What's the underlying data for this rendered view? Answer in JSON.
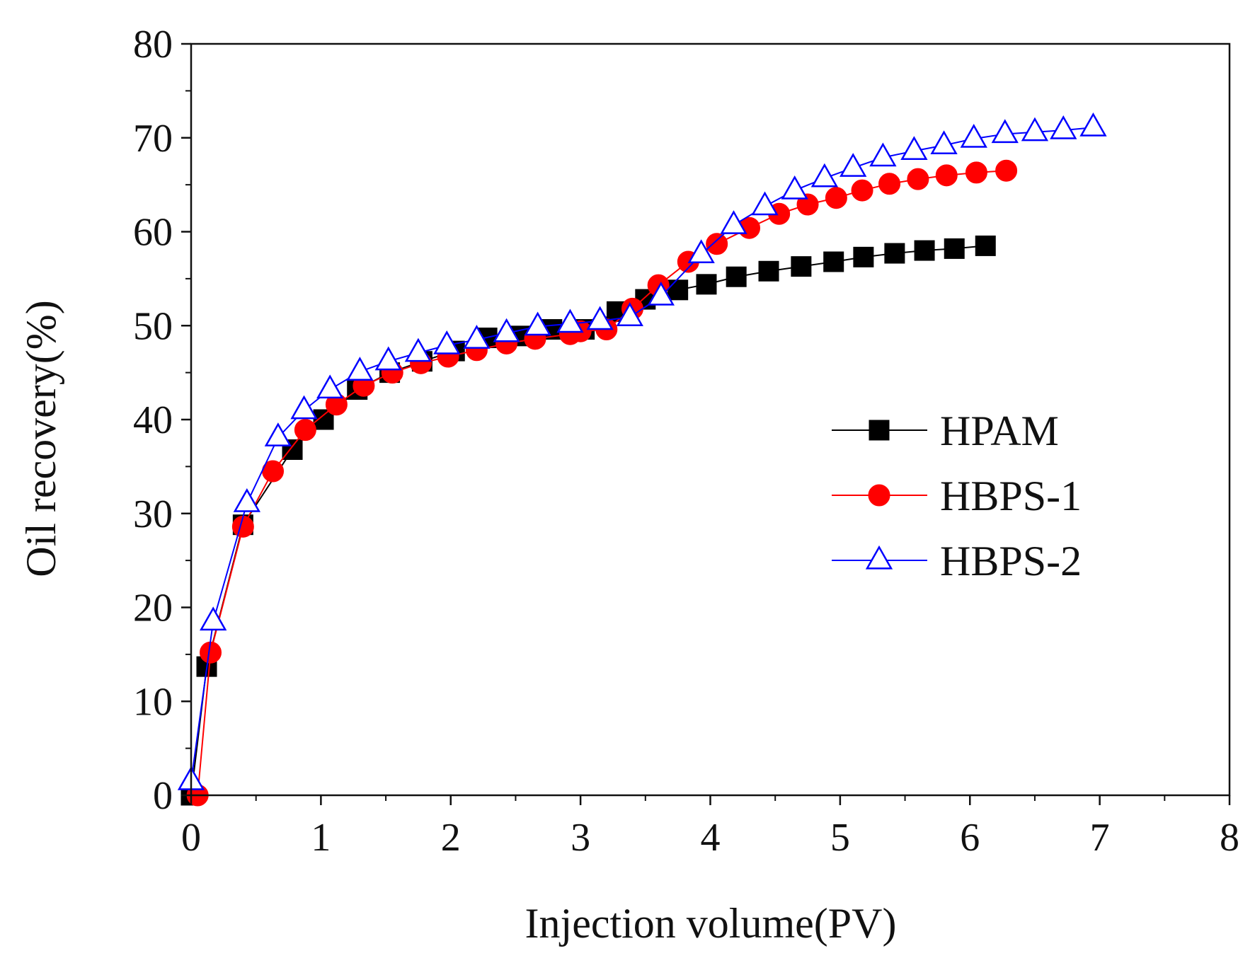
{
  "chart_data": {
    "type": "line",
    "title": "",
    "xlabel": "Injection volume(PV)",
    "ylabel": "Oil recovery(%)",
    "xlim": [
      0,
      8
    ],
    "ylim": [
      0,
      80
    ],
    "xticks": [
      "0",
      "1",
      "2",
      "3",
      "4",
      "5",
      "6",
      "7",
      "8"
    ],
    "yticks": [
      "0",
      "10",
      "20",
      "30",
      "40",
      "50",
      "60",
      "70",
      "80"
    ],
    "grid": false,
    "legend_position": "center-right",
    "series": [
      {
        "name": "HPAM",
        "color": "#000000",
        "marker": "square",
        "x": [
          0,
          0.12,
          0.4,
          0.78,
          1.02,
          1.28,
          1.53,
          1.78,
          2.03,
          2.28,
          2.53,
          2.78,
          3.03,
          3.28,
          3.5,
          3.75,
          3.97,
          4.2,
          4.45,
          4.7,
          4.95,
          5.18,
          5.42,
          5.65,
          5.88,
          6.12
        ],
        "y": [
          0,
          13.7,
          28.8,
          36.8,
          40.0,
          43.2,
          45.0,
          46.2,
          47.3,
          48.7,
          48.9,
          49.6,
          49.6,
          51.5,
          52.8,
          53.8,
          54.4,
          55.2,
          55.8,
          56.3,
          56.8,
          57.3,
          57.7,
          58.0,
          58.2,
          58.5
        ]
      },
      {
        "name": "HBPS-1",
        "color": "#ff0000",
        "marker": "circle",
        "x": [
          0.05,
          0.15,
          0.4,
          0.63,
          0.88,
          1.12,
          1.33,
          1.55,
          1.77,
          1.98,
          2.2,
          2.43,
          2.65,
          2.92,
          3.0,
          3.2,
          3.4,
          3.6,
          3.83,
          4.05,
          4.3,
          4.53,
          4.75,
          4.97,
          5.17,
          5.38,
          5.6,
          5.82,
          6.05,
          6.28
        ],
        "y": [
          0,
          15.2,
          28.6,
          34.5,
          38.9,
          41.6,
          43.6,
          45.0,
          46.0,
          46.7,
          47.4,
          48.1,
          48.6,
          49.1,
          49.4,
          49.6,
          51.8,
          54.3,
          56.8,
          58.7,
          60.4,
          61.9,
          62.9,
          63.6,
          64.4,
          65.1,
          65.6,
          66.0,
          66.3,
          66.5
        ]
      },
      {
        "name": "HBPS-2",
        "color": "#0000ff",
        "marker": "triangle-open",
        "x": [
          0,
          0.17,
          0.43,
          0.67,
          0.87,
          1.07,
          1.3,
          1.52,
          1.75,
          1.97,
          2.2,
          2.43,
          2.67,
          2.92,
          3.15,
          3.38,
          3.62,
          3.93,
          4.18,
          4.42,
          4.65,
          4.88,
          5.1,
          5.33,
          5.57,
          5.8,
          6.03,
          6.27,
          6.5,
          6.72,
          6.95
        ],
        "y": [
          1.5,
          18.5,
          31.1,
          38.1,
          41.0,
          43.2,
          45.1,
          46.2,
          47.1,
          47.9,
          48.5,
          49.2,
          49.9,
          50.2,
          50.5,
          50.9,
          53.1,
          57.6,
          60.7,
          62.7,
          64.4,
          65.7,
          66.8,
          67.9,
          68.6,
          69.2,
          69.9,
          70.4,
          70.6,
          70.8,
          71.1
        ]
      }
    ]
  }
}
